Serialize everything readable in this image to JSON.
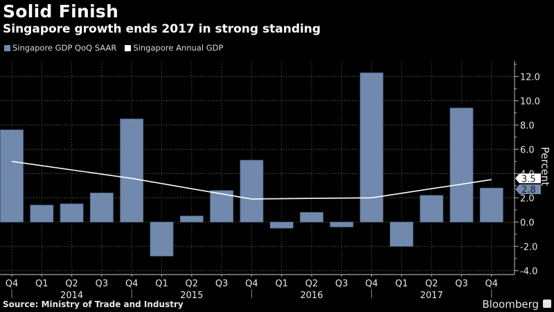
{
  "header": {
    "title": "Solid Finish",
    "subtitle": "Singapore growth ends 2017 in strong standing"
  },
  "footer": {
    "source": "Source: Ministry of Trade and Industry",
    "brand": "Bloomberg"
  },
  "chart_data": {
    "type": "bar",
    "title": "Solid Finish",
    "subtitle": "Singapore growth ends 2017 in strong standing",
    "xlabel": "",
    "ylabel": "Percent",
    "ylim": [
      -4.0,
      13.0
    ],
    "yticks": [
      "12.0",
      "10.0",
      "8.0",
      "6.0",
      "4.0",
      "2.0",
      "0.0",
      "-2.0",
      "-4.0"
    ],
    "ytick_values": [
      12,
      10,
      8,
      6,
      4,
      2,
      0,
      -2,
      -4
    ],
    "grid": true,
    "legend_position": "top-left",
    "categories": [
      "Q4",
      "Q1",
      "Q2",
      "Q3",
      "Q4",
      "Q1",
      "Q2",
      "Q3",
      "Q4",
      "Q1",
      "Q2",
      "Q3",
      "Q4",
      "Q1",
      "Q2",
      "Q3",
      "Q4"
    ],
    "year_labels": [
      {
        "label": "2014",
        "center_index": 2
      },
      {
        "label": "2015",
        "center_index": 6
      },
      {
        "label": "2016",
        "center_index": 10
      },
      {
        "label": "2017",
        "center_index": 14
      }
    ],
    "year_separators": [
      0,
      4,
      8,
      12,
      16
    ],
    "series": [
      {
        "name": "Singapore GDP QoQ SAAR",
        "type": "bar",
        "color": "#7189ad",
        "values": [
          7.6,
          1.4,
          1.5,
          2.4,
          8.5,
          -2.8,
          0.5,
          2.6,
          5.1,
          -0.5,
          0.8,
          -0.4,
          12.3,
          -2.0,
          2.2,
          9.4,
          2.8
        ],
        "last_value_label": "2.8"
      },
      {
        "name": "Singapore Annual GDP",
        "type": "line",
        "color": "#ffffff",
        "points": [
          {
            "index": 0,
            "value": 5.0
          },
          {
            "index": 4,
            "value": 3.6
          },
          {
            "index": 8,
            "value": 1.9
          },
          {
            "index": 12,
            "value": 2.0
          },
          {
            "index": 16,
            "value": 3.5
          }
        ],
        "last_value_label": "3.5"
      }
    ]
  }
}
